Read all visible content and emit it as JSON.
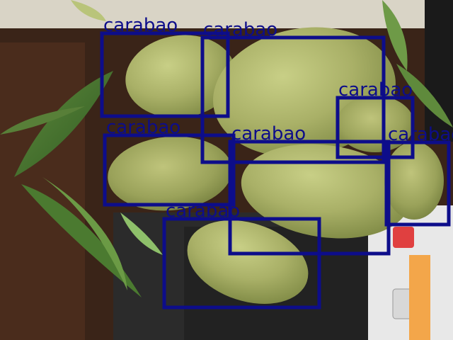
{
  "image": {
    "scene": "cluster of green carabao mangoes with leaves, photographed indoors"
  },
  "detections": [
    {
      "label": "carabao",
      "color": "#0d0d8a"
    },
    {
      "label": "carabao",
      "color": "#0d0d8a"
    },
    {
      "label": "carabao",
      "color": "#0d0d8a"
    },
    {
      "label": "carabao",
      "color": "#0d0d8a"
    },
    {
      "label": "carabao",
      "color": "#0d0d8a"
    },
    {
      "label": "carabao",
      "color": "#0d0d8a"
    },
    {
      "label": "carabao",
      "color": "#0d0d8a"
    }
  ]
}
